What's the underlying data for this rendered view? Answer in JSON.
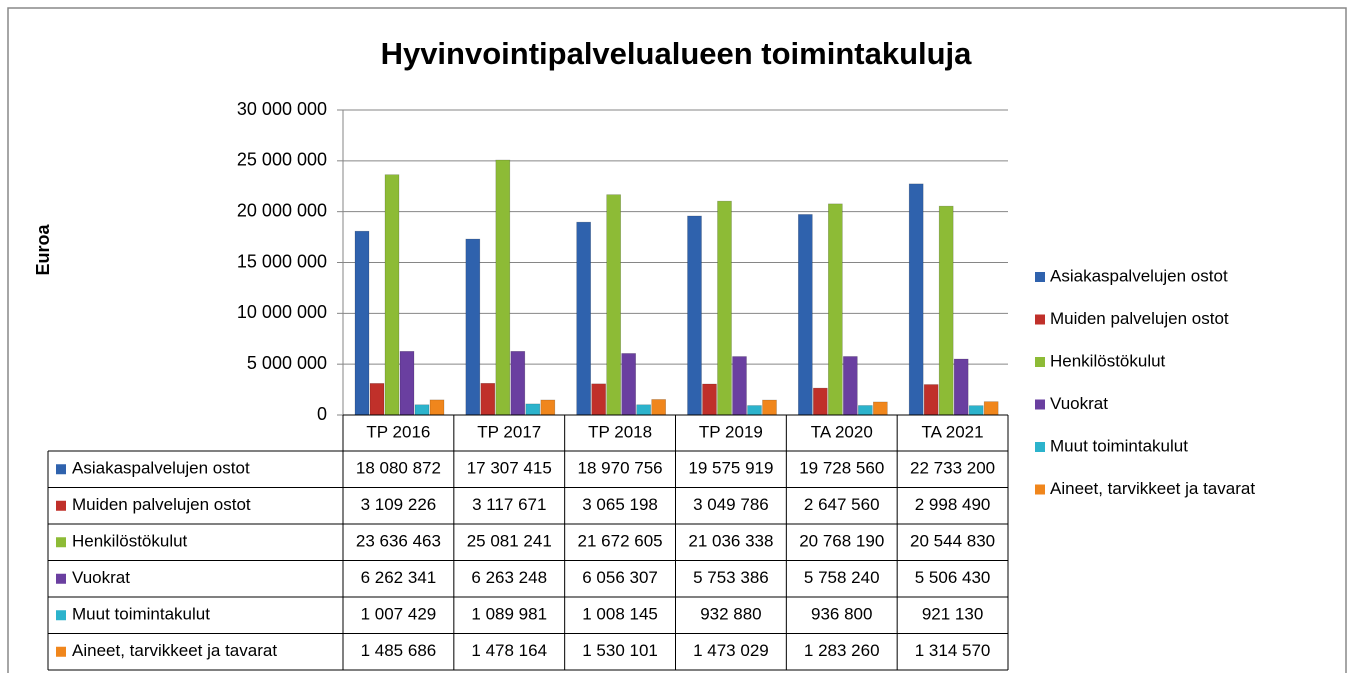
{
  "chart_data": {
    "type": "bar",
    "title": "Hyvinvointipalvelualueen toimintakuluja",
    "y_label": "Euroa",
    "categories": [
      "TP 2016",
      "TP 2017",
      "TP 2018",
      "TP 2019",
      "TA 2020",
      "TA 2021"
    ],
    "series": [
      {
        "name": "Asiakaspalvelujen ostot",
        "color": "#2f62ad",
        "values": [
          18080872,
          17307415,
          18970756,
          19575919,
          19728560,
          22733200
        ],
        "value_labels": [
          "18 080 872",
          "17 307 415",
          "18 970 756",
          "19 575 919",
          "19 728 560",
          "22 733 200"
        ]
      },
      {
        "name": "Muiden palvelujen ostot",
        "color": "#c0302a",
        "values": [
          3109226,
          3117671,
          3065198,
          3049786,
          2647560,
          2998490
        ],
        "value_labels": [
          "3 109 226",
          "3 117 671",
          "3 065 198",
          "3 049 786",
          "2 647 560",
          "2 998 490"
        ]
      },
      {
        "name": "Henkilöstökulut",
        "color": "#8dbb36",
        "values": [
          23636463,
          25081241,
          21672605,
          21036338,
          20768190,
          20544830
        ],
        "value_labels": [
          "23 636 463",
          "25 081 241",
          "21 672 605",
          "21 036 338",
          "20 768 190",
          "20 544 830"
        ]
      },
      {
        "name": "Vuokrat",
        "color": "#6a3fa0",
        "values": [
          6262341,
          6263248,
          6056307,
          5753386,
          5758240,
          5506430
        ],
        "value_labels": [
          "6 262 341",
          "6 263 248",
          "6 056 307",
          "5 753 386",
          "5 758 240",
          "5 506 430"
        ]
      },
      {
        "name": "Muut toimintakulut",
        "color": "#2cb3cc",
        "values": [
          1007429,
          1089981,
          1008145,
          932880,
          936800,
          921130
        ],
        "value_labels": [
          "1 007 429",
          "1 089 981",
          "1 008 145",
          "932 880",
          "936 800",
          "921 130"
        ]
      },
      {
        "name": "Aineet, tarvikkeet ja tavarat",
        "color": "#f0861c",
        "values": [
          1485686,
          1478164,
          1530101,
          1473029,
          1283260,
          1314570
        ],
        "value_labels": [
          "1 485 686",
          "1 478 164",
          "1 530 101",
          "1 473 029",
          "1 283 260",
          "1 314 570"
        ]
      }
    ],
    "ylim": [
      0,
      30000000
    ],
    "yticks": [
      0,
      {
        "value": 5000000,
        "label": "5 000 000"
      },
      {
        "value": 10000000,
        "label": "10 000 000"
      },
      {
        "value": 15000000,
        "label": "15 000 000"
      },
      {
        "value": 20000000,
        "label": "20 000 000"
      },
      {
        "value": 25000000,
        "label": "25 000 000"
      },
      {
        "value": 30000000,
        "label": "30 000 000"
      }
    ],
    "grid": true,
    "legend": "right"
  }
}
